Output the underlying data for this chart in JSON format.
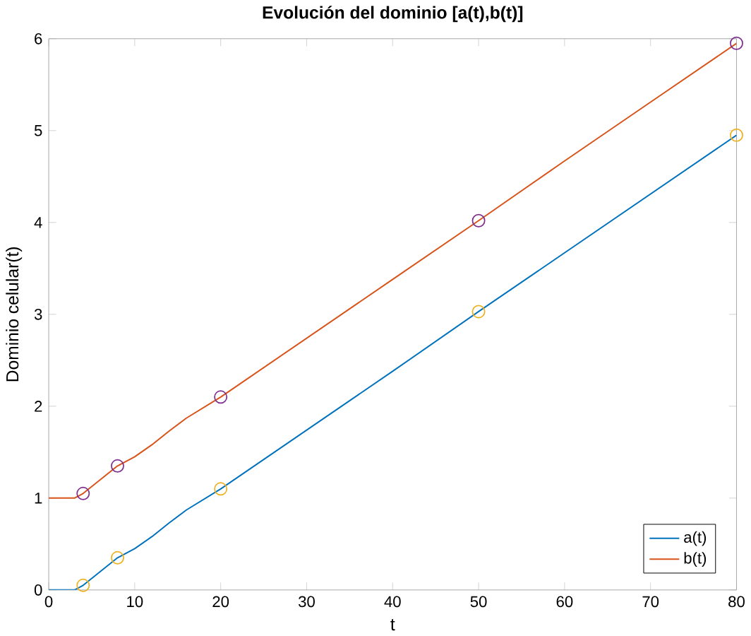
{
  "chart_data": {
    "type": "line",
    "title": "Evolución del dominio [a(t),b(t)]",
    "xlabel": "t",
    "ylabel": "Dominio celular(t)",
    "xlim": [
      0,
      80
    ],
    "ylim": [
      0,
      6
    ],
    "xticks": [
      0,
      10,
      20,
      30,
      40,
      50,
      60,
      70,
      80
    ],
    "yticks": [
      0,
      1,
      2,
      3,
      4,
      5,
      6
    ],
    "legend": "bottom right",
    "grid": false,
    "series": [
      {
        "name": "a(t)",
        "color": "#0072bd",
        "marker": "none",
        "x": [
          0,
          3,
          4,
          6,
          8,
          10,
          12,
          14,
          16,
          20,
          30,
          40,
          50,
          60,
          70,
          80
        ],
        "values": [
          0,
          0,
          0.05,
          0.2,
          0.35,
          0.45,
          0.58,
          0.73,
          0.87,
          1.1,
          1.74,
          2.38,
          3.03,
          3.67,
          4.31,
          4.95
        ]
      },
      {
        "name": "b(t)",
        "color": "#d95319",
        "marker": "none",
        "x": [
          0,
          3,
          4,
          6,
          8,
          10,
          12,
          14,
          16,
          20,
          30,
          40,
          50,
          60,
          70,
          80
        ],
        "values": [
          1,
          1,
          1.05,
          1.2,
          1.35,
          1.45,
          1.58,
          1.73,
          1.87,
          2.1,
          2.74,
          3.38,
          4.02,
          4.67,
          5.31,
          5.95
        ]
      },
      {
        "type": "scatter",
        "color": "#edb120",
        "marker": "circle",
        "x": [
          4,
          8,
          20,
          50,
          80
        ],
        "values": [
          0.05,
          0.35,
          1.1,
          3.03,
          4.95
        ]
      },
      {
        "type": "scatter",
        "color": "#7e2f8e",
        "marker": "circle",
        "x": [
          4,
          8,
          20,
          50,
          80
        ],
        "values": [
          1.05,
          1.35,
          2.1,
          4.02,
          5.95
        ]
      }
    ]
  }
}
